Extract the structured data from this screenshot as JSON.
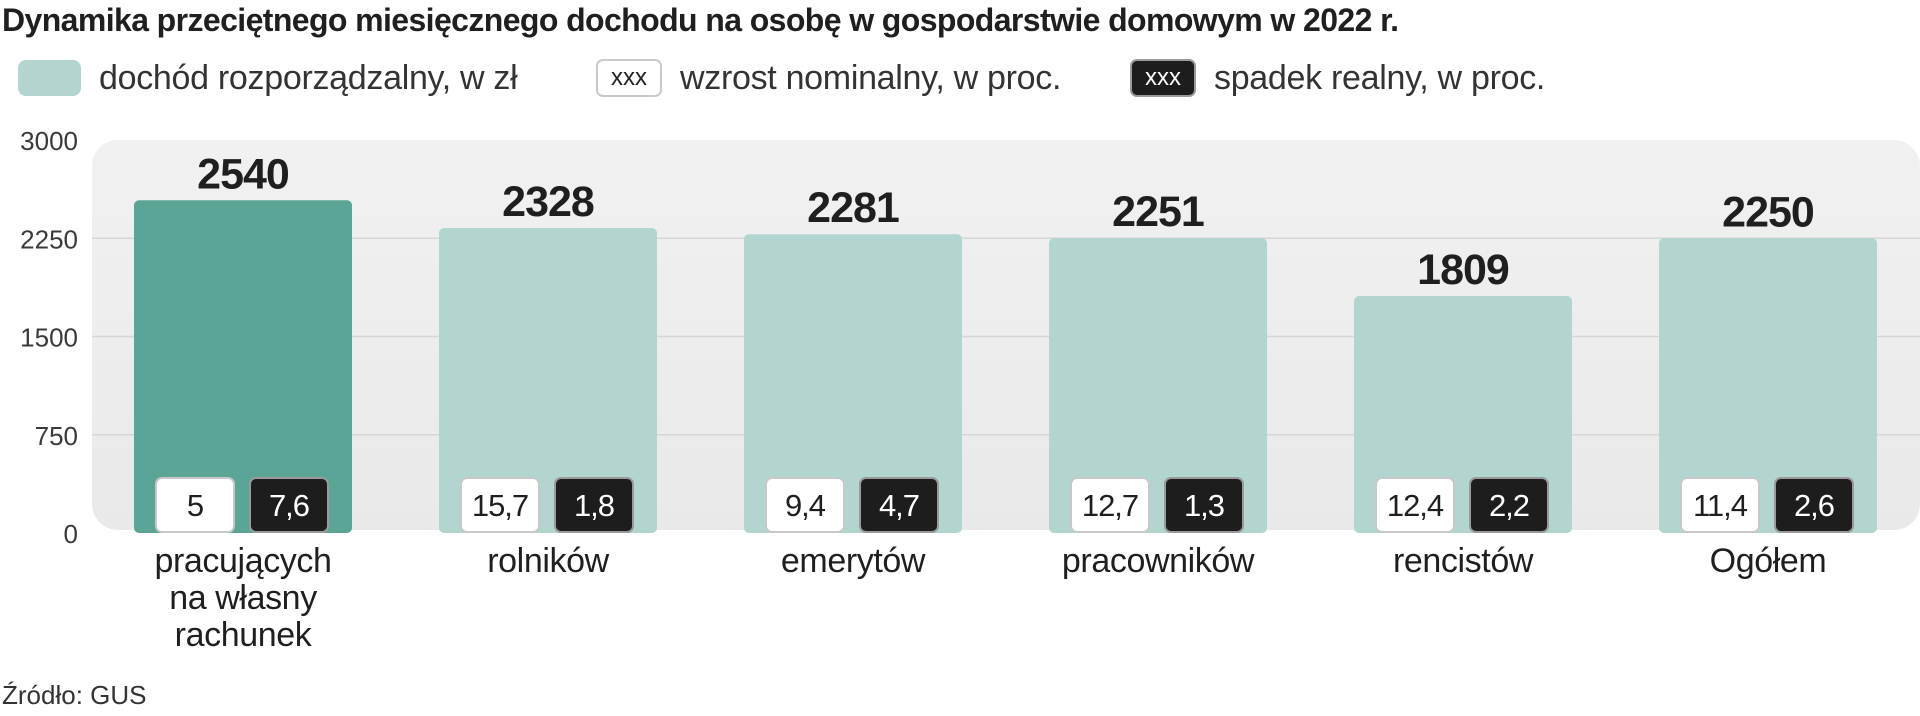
{
  "title": "Dynamika przeciętnego miesięcznego dochodu na osobę w gospodarstwie domowym w 2022 r.",
  "legend": {
    "bar_label": "dochód rozporządzalny, w zł",
    "nominal_box": "xxx",
    "nominal_label": "wzrost nominalny, w proc.",
    "real_box": "xxx",
    "real_label": "spadek realny, w proc."
  },
  "source": "Źródło: GUS",
  "colors": {
    "bar": "#b2d5cf",
    "bar_highlight": "#5ba596",
    "plot_bg": "#ebebeb",
    "nominal_box": "#ffffff",
    "real_box": "#1d1d1d"
  },
  "chart_data": {
    "type": "bar",
    "categories": [
      "pracujących na własny rachunek",
      "rolników",
      "emerytów",
      "pracowników",
      "rencistów",
      "Ogółem"
    ],
    "category_lines": [
      [
        "pracujących",
        "na własny",
        "rachunek"
      ],
      [
        "rolników"
      ],
      [
        "emerytów"
      ],
      [
        "pracowników"
      ],
      [
        "rencistów"
      ],
      [
        "Ogółem"
      ]
    ],
    "series": [
      {
        "name": "dochód rozporządzalny, w zł",
        "values": [
          2540,
          2328,
          2281,
          2251,
          1809,
          2250
        ]
      },
      {
        "name": "wzrost nominalny, w proc.",
        "values": [
          "5",
          "15,7",
          "9,4",
          "12,7",
          "12,4",
          "11,4"
        ]
      },
      {
        "name": "spadek realny, w proc.",
        "values": [
          "7,6",
          "1,8",
          "4,7",
          "1,3",
          "2,2",
          "2,6"
        ]
      }
    ],
    "highlight_index": 0,
    "ylim": [
      0,
      3000
    ],
    "yticks": [
      "0",
      "750",
      "1500",
      "2250",
      "3000"
    ],
    "grid": true,
    "legend_position": "top-left"
  }
}
